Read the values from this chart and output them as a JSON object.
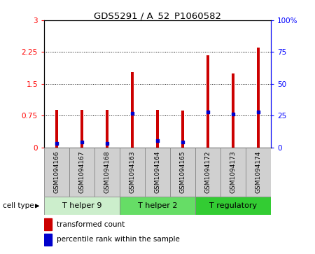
{
  "title": "GDS5291 / A_52_P1060582",
  "categories": [
    "GSM1094166",
    "GSM1094167",
    "GSM1094168",
    "GSM1094163",
    "GSM1094164",
    "GSM1094165",
    "GSM1094172",
    "GSM1094173",
    "GSM1094174"
  ],
  "bar_values": [
    0.88,
    0.88,
    0.88,
    1.77,
    0.88,
    0.87,
    2.18,
    1.74,
    2.35
  ],
  "percentile_values": [
    3,
    4,
    3,
    27,
    5,
    4,
    28,
    26,
    28
  ],
  "bar_color": "#cc0000",
  "dot_color": "#0000cc",
  "ylim_left": [
    0,
    3
  ],
  "ylim_right": [
    0,
    100
  ],
  "yticks_left": [
    0,
    0.75,
    1.5,
    2.25,
    3
  ],
  "yticks_right": [
    0,
    25,
    50,
    75,
    100
  ],
  "ytick_labels_left": [
    "0",
    "0.75",
    "1.5",
    "2.25",
    "3"
  ],
  "ytick_labels_right": [
    "0",
    "25",
    "50",
    "75",
    "100%"
  ],
  "groups": [
    {
      "label": "T helper 9",
      "indices": [
        0,
        1,
        2
      ],
      "color": "#cceecc"
    },
    {
      "label": "T helper 2",
      "indices": [
        3,
        4,
        5
      ],
      "color": "#66dd66"
    },
    {
      "label": "T regulatory",
      "indices": [
        6,
        7,
        8
      ],
      "color": "#33cc33"
    }
  ],
  "cell_type_label": "cell type",
  "legend_bar_label": "transformed count",
  "legend_dot_label": "percentile rank within the sample",
  "background_color": "#ffffff",
  "plot_bg_color": "#ffffff",
  "bar_width": 0.12,
  "sample_box_color": "#d0d0d0"
}
